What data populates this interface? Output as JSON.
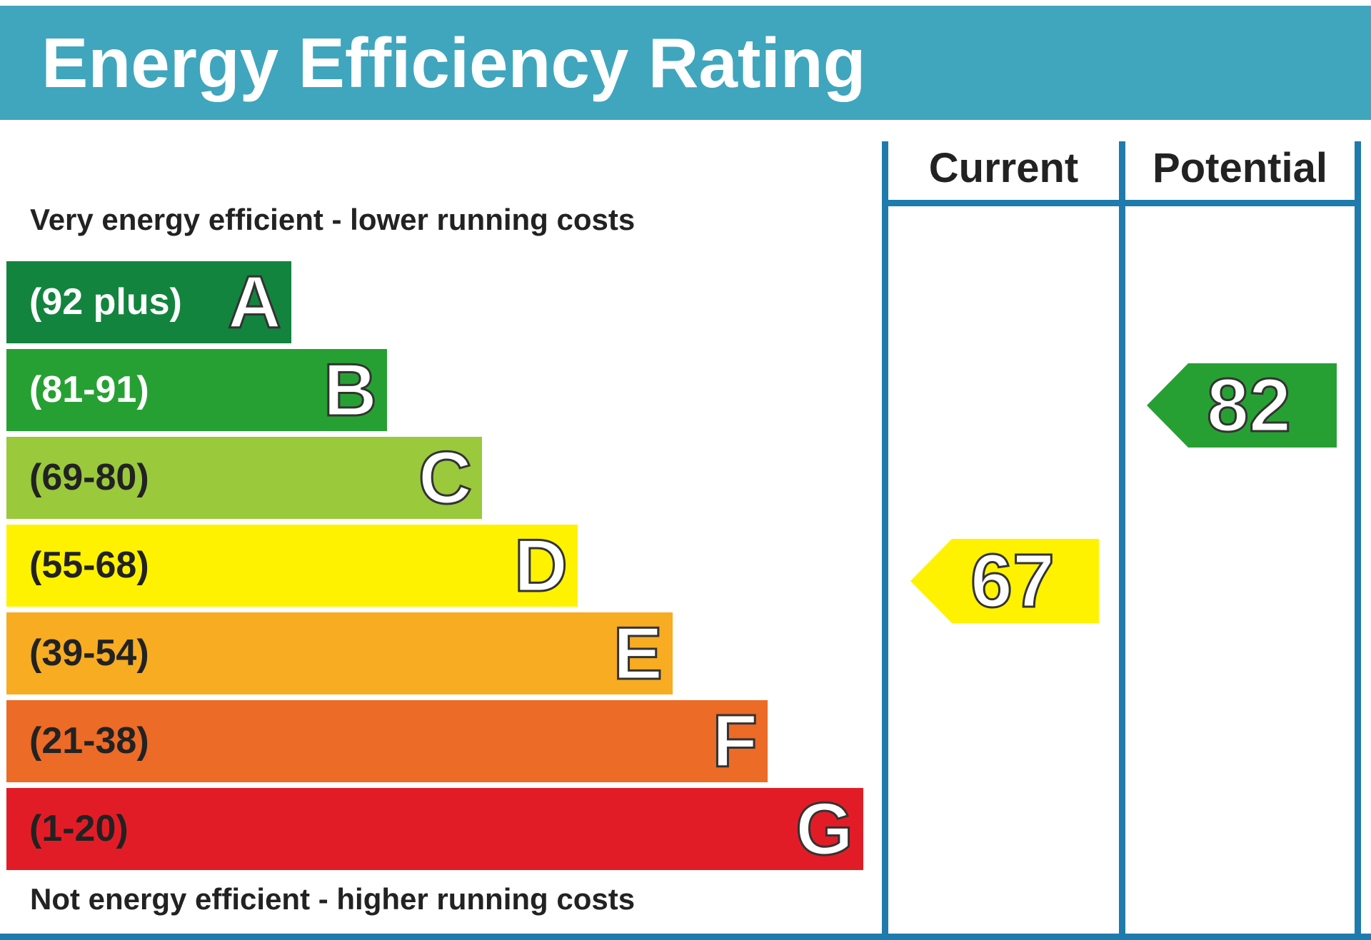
{
  "header": {
    "title": "Energy Efficiency Rating"
  },
  "labels": {
    "top": "Very energy efficient - lower running costs",
    "bottom": "Not energy efficient - higher running costs"
  },
  "columns": {
    "current": "Current",
    "potential": "Potential"
  },
  "colors": {
    "header": "#3fa6bd",
    "frame": "#1f7bab"
  },
  "chart_data": {
    "type": "bar",
    "title": "Energy Efficiency Rating",
    "bands": [
      {
        "letter": "A",
        "range": "(92 plus)",
        "color": "#12843e",
        "text_color": "#ffffff"
      },
      {
        "letter": "B",
        "range": "(81-91)",
        "color": "#27a033",
        "text_color": "#ffffff"
      },
      {
        "letter": "C",
        "range": "(69-80)",
        "color": "#9ac93c",
        "text_color": "#222222"
      },
      {
        "letter": "D",
        "range": "(55-68)",
        "color": "#fff200",
        "text_color": "#222222"
      },
      {
        "letter": "E",
        "range": "(39-54)",
        "color": "#f7ac22",
        "text_color": "#222222"
      },
      {
        "letter": "F",
        "range": "(21-38)",
        "color": "#ec6b26",
        "text_color": "#222222"
      },
      {
        "letter": "G",
        "range": "(1-20)",
        "color": "#e21c26",
        "text_color": "#222222"
      }
    ],
    "current": {
      "value": 67,
      "band": "D",
      "color": "#fff200"
    },
    "potential": {
      "value": 82,
      "band": "B",
      "color": "#27a033"
    }
  }
}
